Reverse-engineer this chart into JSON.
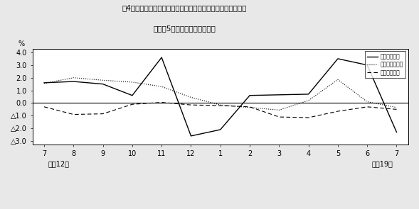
{
  "title_line1": "第4図　　賃金、労働時間、常用雇用指数対前年同月比の推移",
  "title_line2": "（規檃5人以上　調査産業計）",
  "xlabel_left": "平成12年",
  "xlabel_right": "平成19年",
  "ylabel": "%",
  "x_labels": [
    "7",
    "8",
    "9",
    "10",
    "11",
    "12",
    "1",
    "2",
    "3",
    "4",
    "5",
    "6",
    "7"
  ],
  "ylim": [
    -3.3,
    4.3
  ],
  "yticks": [
    4.0,
    3.0,
    2.0,
    1.0,
    0.0,
    -1.0,
    -2.0,
    -3.0
  ],
  "ytick_labels": [
    "4.0",
    "3.0",
    "2.0",
    "1.0",
    "0.0",
    "△1.0",
    "△2.0",
    "△3.0"
  ],
  "legend_entries": [
    "現金給与総額",
    "所定外労働時間",
    "常用雇用指数"
  ],
  "series_wage": [
    1.6,
    1.7,
    1.5,
    0.6,
    3.6,
    -2.6,
    -2.1,
    0.6,
    0.65,
    0.7,
    3.5,
    3.0,
    -2.3
  ],
  "series_hours": [
    1.55,
    2.0,
    1.8,
    1.65,
    1.3,
    0.45,
    -0.15,
    -0.35,
    -0.55,
    0.2,
    1.85,
    0.1,
    -0.35
  ],
  "series_employment": [
    -0.3,
    -0.9,
    -0.85,
    -0.1,
    0.05,
    -0.15,
    -0.2,
    -0.3,
    -1.1,
    -1.15,
    -0.65,
    -0.3,
    -0.5
  ],
  "background_color": "#e8e8e8",
  "plot_bg_color": "#ffffff"
}
